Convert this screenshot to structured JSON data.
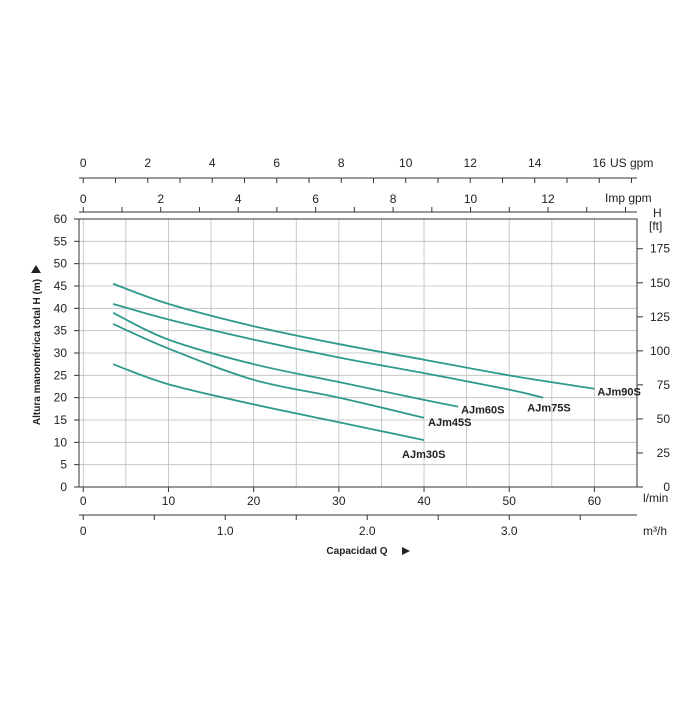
{
  "chart_data": {
    "type": "line",
    "title": "",
    "ylabel": "Altura manométrica total H  (m)",
    "xlabel": "Capacidad Q",
    "y_axis": {
      "unit": "",
      "range": [
        0,
        60
      ],
      "ticks": [
        0,
        5,
        10,
        15,
        20,
        25,
        30,
        35,
        40,
        45,
        50,
        55,
        60
      ]
    },
    "y_axis_right": {
      "unit": "H",
      "unit2": "[ft]",
      "ticks": [
        0,
        25,
        50,
        75,
        100,
        125,
        150,
        175
      ]
    },
    "x_axis": {
      "unit": "l/min",
      "range": [
        -0.5,
        65
      ],
      "ticks": [
        0,
        10,
        20,
        30,
        40,
        50,
        60
      ]
    },
    "x_axis_m3h": {
      "unit": "m³/h",
      "ticks": [
        0,
        1.0,
        2.0,
        3.0
      ],
      "tick_labels": [
        "0",
        "1.0",
        "2.0",
        "3.0"
      ]
    },
    "x_axis_us_gpm": {
      "unit": "US gpm",
      "ticks": [
        0,
        2,
        4,
        6,
        8,
        10,
        12,
        14,
        16
      ]
    },
    "x_axis_imp_gpm": {
      "unit": "Imp gpm",
      "ticks": [
        0,
        2,
        4,
        6,
        8,
        10,
        12
      ]
    },
    "grid": true,
    "series": [
      {
        "name": "AJm90S",
        "x": [
          3.5,
          10,
          20,
          30,
          40,
          50,
          60
        ],
        "y": [
          45.5,
          41,
          36,
          32,
          28.5,
          25,
          22
        ]
      },
      {
        "name": "AJm75S",
        "x": [
          3.5,
          10,
          20,
          30,
          40,
          50,
          54
        ],
        "y": [
          41,
          37.5,
          33,
          29,
          25.5,
          21.8,
          20
        ]
      },
      {
        "name": "AJm60S",
        "x": [
          3.5,
          10,
          20,
          30,
          40,
          44
        ],
        "y": [
          39,
          33,
          27.5,
          23.5,
          19.5,
          18
        ]
      },
      {
        "name": "AJm45S",
        "x": [
          3.5,
          10,
          20,
          30,
          40
        ],
        "y": [
          36.5,
          31,
          24,
          20,
          15.5
        ]
      },
      {
        "name": "AJm30S",
        "x": [
          3.5,
          10,
          20,
          30,
          40
        ],
        "y": [
          27.5,
          23,
          18.5,
          14.5,
          10.5
        ]
      }
    ],
    "line_color": "#2e9a8c"
  }
}
